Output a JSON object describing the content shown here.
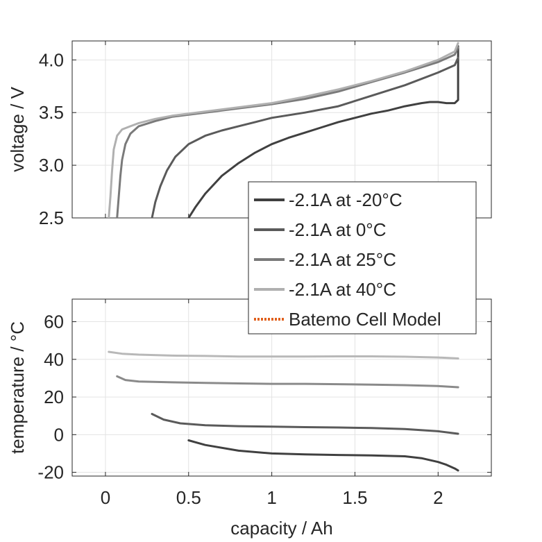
{
  "chart_data": [
    {
      "type": "line",
      "ylabel": "voltage / V",
      "xlim": [
        -0.2,
        2.32
      ],
      "ylim": [
        2.5,
        4.18
      ],
      "yticks": [
        2.5,
        3.0,
        3.5,
        4.0
      ],
      "ytick_labels": [
        "2.5",
        "3.0",
        "3.5",
        "4.0"
      ],
      "xticks": [
        0,
        0.5,
        1,
        1.5,
        2
      ],
      "grid": true,
      "series": [
        {
          "name": "-2.1A at -20°C",
          "color": "#404040",
          "x": [
            0.5,
            0.54,
            0.6,
            0.7,
            0.8,
            0.9,
            1.0,
            1.1,
            1.2,
            1.3,
            1.4,
            1.5,
            1.6,
            1.7,
            1.8,
            1.9,
            1.95,
            2.0,
            2.05,
            2.1,
            2.12,
            2.12,
            2.12
          ],
          "y": [
            2.5,
            2.6,
            2.73,
            2.9,
            3.02,
            3.12,
            3.2,
            3.26,
            3.31,
            3.36,
            3.41,
            3.45,
            3.49,
            3.52,
            3.56,
            3.59,
            3.6,
            3.6,
            3.59,
            3.59,
            3.62,
            3.8,
            4.13
          ]
        },
        {
          "name": "-2.1A at 0°C",
          "color": "#5a5a5a",
          "x": [
            0.28,
            0.3,
            0.33,
            0.37,
            0.42,
            0.5,
            0.6,
            0.7,
            0.8,
            0.9,
            1.0,
            1.2,
            1.4,
            1.6,
            1.8,
            2.0,
            2.1,
            2.12
          ],
          "y": [
            2.5,
            2.65,
            2.8,
            2.95,
            3.08,
            3.2,
            3.28,
            3.33,
            3.37,
            3.41,
            3.45,
            3.5,
            3.56,
            3.66,
            3.76,
            3.88,
            3.95,
            4.02
          ]
        },
        {
          "name": "-2.1A at 25°C",
          "color": "#7a7a7a",
          "x": [
            0.07,
            0.08,
            0.09,
            0.1,
            0.12,
            0.15,
            0.2,
            0.3,
            0.4,
            0.6,
            0.8,
            1.0,
            1.2,
            1.4,
            1.6,
            1.8,
            2.0,
            2.1,
            2.12
          ],
          "y": [
            2.5,
            2.7,
            2.9,
            3.05,
            3.2,
            3.3,
            3.37,
            3.42,
            3.46,
            3.5,
            3.54,
            3.58,
            3.63,
            3.7,
            3.79,
            3.88,
            3.98,
            4.05,
            4.12
          ]
        },
        {
          "name": "-2.1A at 40°C",
          "color": "#b0b0b0",
          "x": [
            0.02,
            0.03,
            0.04,
            0.05,
            0.07,
            0.1,
            0.15,
            0.2,
            0.3,
            0.4,
            0.6,
            0.8,
            1.0,
            1.2,
            1.4,
            1.6,
            1.8,
            2.0,
            2.1,
            2.12
          ],
          "y": [
            2.5,
            2.7,
            2.95,
            3.15,
            3.28,
            3.34,
            3.37,
            3.4,
            3.44,
            3.47,
            3.51,
            3.55,
            3.59,
            3.65,
            3.72,
            3.8,
            3.89,
            4.0,
            4.08,
            4.16
          ]
        }
      ]
    },
    {
      "type": "line",
      "ylabel": "temperature / °C",
      "xlabel": "capacity / Ah",
      "xlim": [
        -0.2,
        2.32
      ],
      "ylim": [
        -22,
        72
      ],
      "yticks": [
        -20,
        0,
        20,
        40,
        60
      ],
      "ytick_labels": [
        "-20",
        "0",
        "20",
        "40",
        "60"
      ],
      "xticks": [
        0,
        0.5,
        1,
        1.5,
        2
      ],
      "xtick_labels": [
        "0",
        "0.5",
        "1",
        "1.5",
        "2"
      ],
      "grid": true,
      "series": [
        {
          "name": "-2.1A at -20°C",
          "color": "#404040",
          "x": [
            0.5,
            0.6,
            0.8,
            1.0,
            1.2,
            1.4,
            1.6,
            1.8,
            1.9,
            2.0,
            2.05,
            2.1,
            2.12
          ],
          "y": [
            -3,
            -5.5,
            -8.5,
            -10,
            -10.5,
            -10.8,
            -11,
            -11.5,
            -12.5,
            -14.5,
            -16,
            -18,
            -19
          ]
        },
        {
          "name": "-2.1A at 0°C",
          "color": "#5a5a5a",
          "x": [
            0.28,
            0.35,
            0.45,
            0.6,
            0.8,
            1.0,
            1.2,
            1.4,
            1.6,
            1.8,
            2.0,
            2.12
          ],
          "y": [
            11,
            8,
            6,
            5,
            4.5,
            4.3,
            4,
            3.8,
            3.5,
            3,
            1.8,
            0.5
          ]
        },
        {
          "name": "-2.1A at 25°C",
          "color": "#8a8a8a",
          "x": [
            0.07,
            0.12,
            0.2,
            0.4,
            0.6,
            0.8,
            1.0,
            1.2,
            1.4,
            1.6,
            1.8,
            2.0,
            2.12
          ],
          "y": [
            31,
            29,
            28.2,
            27.8,
            27.5,
            27.2,
            27,
            27,
            26.8,
            26.6,
            26.3,
            25.8,
            25.2
          ]
        },
        {
          "name": "-2.1A at 40°C",
          "color": "#b8b8b8",
          "x": [
            0.02,
            0.1,
            0.2,
            0.4,
            0.6,
            0.8,
            1.0,
            1.2,
            1.4,
            1.6,
            1.8,
            2.0,
            2.12
          ],
          "y": [
            44,
            43,
            42.5,
            42,
            41.8,
            41.5,
            41.5,
            41.5,
            41.6,
            41.6,
            41.4,
            41,
            40.5
          ]
        }
      ]
    }
  ],
  "legend": {
    "placement": "center-right",
    "entries": [
      {
        "label": "-2.1A at -20°C",
        "color": "#404040",
        "style": "solid"
      },
      {
        "label": "-2.1A at 0°C",
        "color": "#5a5a5a",
        "style": "solid"
      },
      {
        "label": "-2.1A at 25°C",
        "color": "#7a7a7a",
        "style": "solid"
      },
      {
        "label": "-2.1A at 40°C",
        "color": "#b0b0b0",
        "style": "solid"
      },
      {
        "label": "Batemo Cell Model",
        "color": "#e0601c",
        "style": "dotted"
      }
    ]
  }
}
